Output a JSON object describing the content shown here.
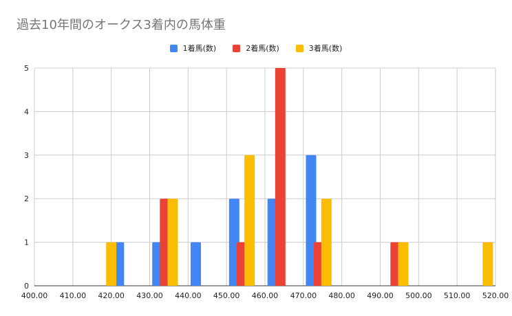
{
  "chart_data": {
    "type": "bar",
    "title": "過去10年間のオークス3着内の馬体重",
    "xlabel": "",
    "ylabel": "",
    "x_ticks": [
      "400.00",
      "410.00",
      "420.00",
      "430.00",
      "440.00",
      "450.00",
      "460.00",
      "470.00",
      "480.00",
      "490.00",
      "500.00",
      "510.00",
      "520.00"
    ],
    "y_ticks": [
      "0",
      "1",
      "2",
      "3",
      "4",
      "5"
    ],
    "xlim": [
      400,
      520
    ],
    "ylim": [
      0,
      5
    ],
    "grid": true,
    "legend_position": "top",
    "series": [
      {
        "name": "1着馬(数)",
        "color": "#4285F4",
        "points": [
          {
            "x": 422,
            "y": 1
          },
          {
            "x": 432,
            "y": 1
          },
          {
            "x": 442,
            "y": 1
          },
          {
            "x": 452,
            "y": 2
          },
          {
            "x": 462,
            "y": 2
          },
          {
            "x": 472,
            "y": 3
          }
        ]
      },
      {
        "name": "2着馬(数)",
        "color": "#EA4335",
        "points": [
          {
            "x": 434,
            "y": 2
          },
          {
            "x": 454,
            "y": 1
          },
          {
            "x": 464,
            "y": 5
          },
          {
            "x": 474,
            "y": 1
          },
          {
            "x": 494,
            "y": 1
          }
        ]
      },
      {
        "name": "3着馬(数)",
        "color": "#FBBC04",
        "points": [
          {
            "x": 420,
            "y": 1
          },
          {
            "x": 436,
            "y": 2
          },
          {
            "x": 456,
            "y": 3
          },
          {
            "x": 476,
            "y": 2
          },
          {
            "x": 496,
            "y": 1
          },
          {
            "x": 518,
            "y": 1
          }
        ]
      }
    ]
  }
}
